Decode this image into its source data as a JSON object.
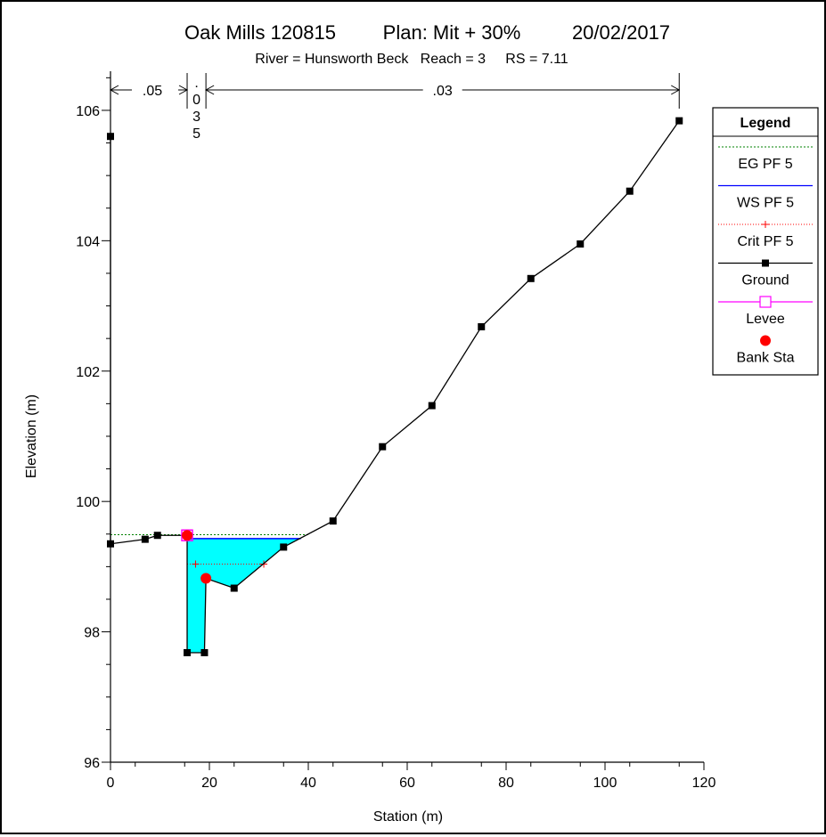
{
  "chart_data": {
    "type": "line",
    "title": "Oak Mills 120815",
    "plan": "Plan: Mit + 30%",
    "date": "20/02/2017",
    "subtitle": "River = Hunsworth Beck   Reach = 3     RS = 7.11",
    "xlabel": "Station (m)",
    "ylabel": "Elevation (m)",
    "xlim": [
      0,
      120
    ],
    "ylim": [
      96,
      106.6
    ],
    "xticks": [
      "0",
      "20",
      "40",
      "60",
      "80",
      "100",
      "120"
    ],
    "yticks": [
      "96",
      "98",
      "100",
      "102",
      "104",
      "106"
    ],
    "xtick_values": [
      0,
      20,
      40,
      60,
      80,
      100,
      120
    ],
    "ytick_values": [
      96,
      98,
      100,
      102,
      104,
      106
    ],
    "ground": {
      "x": [
        0,
        0,
        7,
        9.5,
        15.5,
        15.5,
        19,
        19.3,
        25,
        35,
        45,
        55,
        65,
        75,
        85,
        95,
        105,
        115
      ],
      "y": [
        105.6,
        99.35,
        99.42,
        99.48,
        99.48,
        97.68,
        97.68,
        98.82,
        98.67,
        99.3,
        99.7,
        100.84,
        101.47,
        102.68,
        103.42,
        103.95,
        104.76,
        105.84
      ]
    },
    "water_surface": {
      "name": "WS PF 5",
      "elevation": 99.43,
      "x_start": 15.5,
      "x_end": 38.5,
      "color": "#0000ff"
    },
    "energy_grade": {
      "name": "EG PF 5",
      "elevation": 99.49,
      "x_start": 0,
      "x_end": 40,
      "color": "#008000"
    },
    "critical": {
      "name": "Crit PF 5",
      "elevation": 99.04,
      "x_start": 15.5,
      "x_end": 31,
      "markers": [
        17.2,
        31
      ],
      "color": "#ff0000"
    },
    "levee": {
      "name": "Levee",
      "x": 15.5,
      "y": 99.48,
      "color": "#ff00ff"
    },
    "bank_stations": {
      "name": "Bank Sta",
      "points": [
        [
          15.5,
          99.48
        ],
        [
          19.3,
          98.82
        ]
      ],
      "color": "#ff0000"
    },
    "water_fill_color": "#00ffff",
    "mannings_n": [
      {
        "label": ".05",
        "x_start": 0,
        "x_end": 15.5
      },
      {
        "label": ".035",
        "chars": [
          ".",
          "0",
          "3",
          "5"
        ],
        "x_start": 15.5,
        "x_end": 19.3
      },
      {
        "label": ".03",
        "x_start": 19.3,
        "x_end": 115
      }
    ],
    "legend": {
      "title": "Legend",
      "position": "top-right",
      "entries": [
        "EG PF 5",
        "WS PF 5",
        "Crit PF 5",
        "Ground",
        "Levee",
        "Bank Sta"
      ]
    },
    "grid": false
  }
}
